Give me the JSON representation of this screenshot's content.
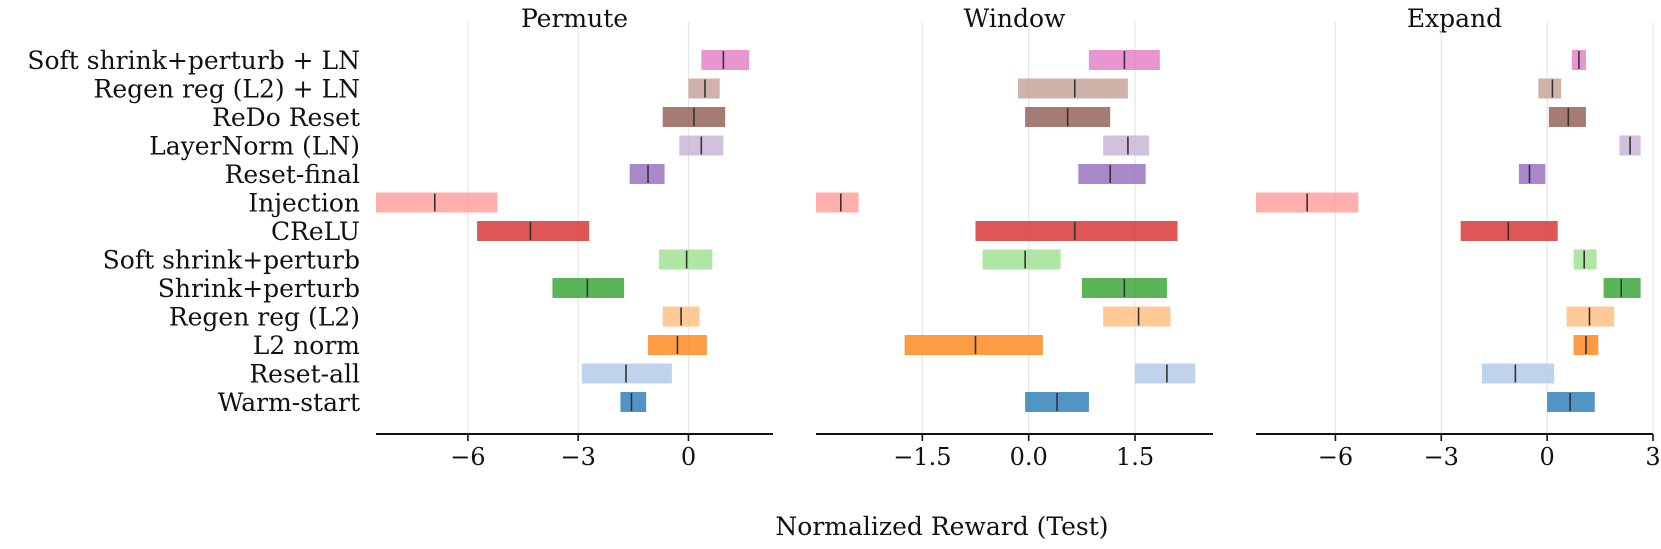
{
  "chart_data": {
    "type": "horizontal-interval",
    "xlabel": "Normalized Reward (Test)",
    "rows": [
      "Soft shrink+perturb + LN",
      "Regen reg (L2) + LN",
      "ReDo Reset",
      "LayerNorm (LN)",
      "Reset-final",
      "Injection",
      "CReLU",
      "Soft shrink+perturb",
      "Shrink+perturb",
      "Regen reg (L2)",
      "L2 norm",
      "Reset-all",
      "Warm-start"
    ],
    "colors": [
      "#e377c2",
      "#c49c94",
      "#8c564b",
      "#c5b0d5",
      "#9467bd",
      "#ff9896",
      "#d62728",
      "#98df8a",
      "#2ca02c",
      "#ffbb78",
      "#ff7f0e",
      "#aec7e8",
      "#1f77b4"
    ],
    "panels": [
      {
        "title": "Permute",
        "xlim": [
          -8.5,
          2.3
        ],
        "ticks": [
          -6,
          -3,
          0
        ],
        "tick_labels": [
          "−6",
          "−3",
          "0"
        ],
        "intervals": [
          [
            0.35,
            1.65,
            0.95
          ],
          [
            0.0,
            0.85,
            0.45
          ],
          [
            -0.7,
            1.0,
            0.15
          ],
          [
            -0.25,
            0.95,
            0.35
          ],
          [
            -1.6,
            -0.65,
            -1.1
          ],
          [
            -8.5,
            -5.2,
            -6.9
          ],
          [
            -5.75,
            -2.7,
            -4.3
          ],
          [
            -0.8,
            0.65,
            -0.05
          ],
          [
            -3.7,
            -1.75,
            -2.75
          ],
          [
            -0.7,
            0.3,
            -0.2
          ],
          [
            -1.1,
            0.5,
            -0.3
          ],
          [
            -2.9,
            -0.45,
            -1.7
          ],
          [
            -1.85,
            -1.15,
            -1.55
          ]
        ]
      },
      {
        "title": "Window",
        "xlim": [
          -3.0,
          2.6
        ],
        "ticks": [
          -1.5,
          0.0,
          1.5
        ],
        "tick_labels": [
          "−1.5",
          "0.0",
          "1.5"
        ],
        "intervals": [
          [
            0.85,
            1.85,
            1.35
          ],
          [
            -0.15,
            1.4,
            0.65
          ],
          [
            -0.05,
            1.15,
            0.55
          ],
          [
            1.05,
            1.7,
            1.4
          ],
          [
            0.7,
            1.65,
            1.15
          ],
          [
            -3.0,
            -2.4,
            -2.65
          ],
          [
            -0.75,
            2.1,
            0.65
          ],
          [
            -0.65,
            0.45,
            -0.05
          ],
          [
            0.75,
            1.95,
            1.35
          ],
          [
            1.05,
            2.0,
            1.55
          ],
          [
            -1.75,
            0.2,
            -0.75
          ],
          [
            1.5,
            2.35,
            1.95
          ],
          [
            -0.05,
            0.85,
            0.4
          ]
        ]
      },
      {
        "title": "Expand",
        "xlim": [
          -8.25,
          3.0
        ],
        "ticks": [
          -6,
          -3,
          0,
          3
        ],
        "tick_labels": [
          "−6",
          "−3",
          "0",
          "3"
        ],
        "intervals": [
          [
            0.7,
            1.1,
            0.9
          ],
          [
            -0.25,
            0.4,
            0.15
          ],
          [
            0.05,
            1.1,
            0.6
          ],
          [
            2.05,
            2.65,
            2.35
          ],
          [
            -0.8,
            -0.05,
            -0.5
          ],
          [
            -8.25,
            -5.35,
            -6.8
          ],
          [
            -2.45,
            0.3,
            -1.1
          ],
          [
            0.75,
            1.4,
            1.05
          ],
          [
            1.6,
            2.65,
            2.1
          ],
          [
            0.55,
            1.9,
            1.2
          ],
          [
            0.75,
            1.45,
            1.1
          ],
          [
            -1.85,
            0.2,
            -0.9
          ],
          [
            0.0,
            1.35,
            0.65
          ]
        ]
      }
    ]
  }
}
